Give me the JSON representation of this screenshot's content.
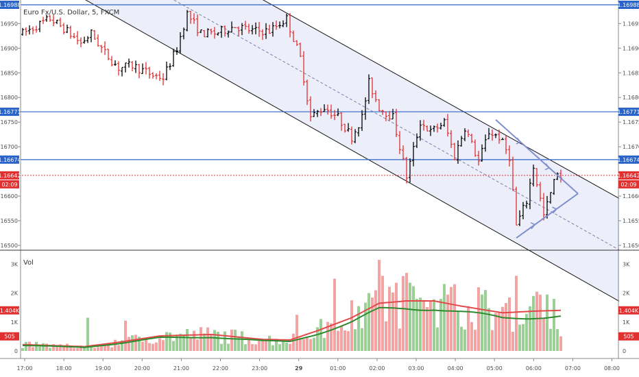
{
  "header": {
    "title": "Euro Fx/U.S. Dollar, 5, FXCM"
  },
  "volume_label": "Vol",
  "colors": {
    "up": "#000000",
    "down": "#e03030",
    "hline": "#2a64c8",
    "current": "#e03030",
    "channel_fill": "#eceef9",
    "channel_line": "#111111",
    "channel_mid": "#7b7fb0",
    "triangle": "#7f8fcf",
    "vol_up": "#9ccf95",
    "vol_down": "#f4a3a3",
    "vol_ma": "#e14848",
    "vol_ma2": "#2d8a2d"
  },
  "chart_data": [
    {
      "type": "candlestick",
      "title": "Euro Fx/U.S. Dollar, 5, FXCM",
      "ylim": [
        1.165,
        1.16988
      ],
      "y_ticks": [
        "1.16950",
        "1.16900",
        "1.16850",
        "1.16800",
        "1.16750",
        "1.16700",
        "1.16600",
        "1.16550",
        "1.16500"
      ],
      "x_ticks": [
        "17:00",
        "18:00",
        "19:00",
        "20:00",
        "21:00",
        "22:00",
        "23:00",
        "29",
        "01:00",
        "02:00",
        "03:00",
        "04:00",
        "05:00",
        "06:00",
        "07:00",
        "08:00"
      ],
      "x_ticks_right": [
        "08:00"
      ],
      "horizontal_lines": [
        {
          "value": 1.16988,
          "label": "1.16988"
        },
        {
          "value": 1.16771,
          "label": "1.16771"
        },
        {
          "value": 1.16674,
          "label": "1.16674"
        }
      ],
      "current_price": {
        "value": 1.16642,
        "label": "1.16642",
        "countdown": "02:09"
      },
      "anchors": [
        {
          "t": 0,
          "p": 1.1693
        },
        {
          "t": 8,
          "p": 1.1696
        },
        {
          "t": 12,
          "p": 1.1694
        },
        {
          "t": 17,
          "p": 1.1691
        },
        {
          "t": 20,
          "p": 1.1693
        },
        {
          "t": 24,
          "p": 1.1689
        },
        {
          "t": 28,
          "p": 1.1686
        },
        {
          "t": 32,
          "p": 1.16865
        },
        {
          "t": 38,
          "p": 1.16845
        },
        {
          "t": 41,
          "p": 1.1684
        },
        {
          "t": 45,
          "p": 1.169
        },
        {
          "t": 48,
          "p": 1.1697
        },
        {
          "t": 52,
          "p": 1.1693
        },
        {
          "t": 56,
          "p": 1.1693
        },
        {
          "t": 62,
          "p": 1.16945
        },
        {
          "t": 67,
          "p": 1.16935
        },
        {
          "t": 72,
          "p": 1.16935
        },
        {
          "t": 77,
          "p": 1.1696
        },
        {
          "t": 79,
          "p": 1.1692
        },
        {
          "t": 81,
          "p": 1.1688
        },
        {
          "t": 84,
          "p": 1.1676
        },
        {
          "t": 88,
          "p": 1.1678
        },
        {
          "t": 92,
          "p": 1.1676
        },
        {
          "t": 96,
          "p": 1.1672
        },
        {
          "t": 99,
          "p": 1.1676
        },
        {
          "t": 101,
          "p": 1.1683
        },
        {
          "t": 104,
          "p": 1.1678
        },
        {
          "t": 108,
          "p": 1.1676
        },
        {
          "t": 112,
          "p": 1.1664
        },
        {
          "t": 116,
          "p": 1.1675
        },
        {
          "t": 119,
          "p": 1.1673
        },
        {
          "t": 123,
          "p": 1.1675
        },
        {
          "t": 126,
          "p": 1.1668
        },
        {
          "t": 129,
          "p": 1.1674
        },
        {
          "t": 133,
          "p": 1.1667
        },
        {
          "t": 136,
          "p": 1.1673
        },
        {
          "t": 139,
          "p": 1.1672
        },
        {
          "t": 142,
          "p": 1.1668
        },
        {
          "t": 144,
          "p": 1.1654
        },
        {
          "t": 147,
          "p": 1.1659
        },
        {
          "t": 149,
          "p": 1.1666
        },
        {
          "t": 152,
          "p": 1.1656
        },
        {
          "t": 156,
          "p": 1.1665
        },
        {
          "t": 157,
          "p": 1.1664
        }
      ],
      "channel": {
        "upper": {
          "t1": 58,
          "p1": 1.17045,
          "t2": 163,
          "p2": 1.16638
        },
        "lower": {
          "t1": 0,
          "p1": 1.1707,
          "t2": 149,
          "p2": 1.16485
        }
      },
      "triangle": {
        "apex": {
          "t": 162,
          "p": 1.16605
        },
        "top": {
          "t": 138,
          "p": 1.16755
        },
        "bottom": {
          "t": 144,
          "p": 1.16515
        }
      }
    },
    {
      "type": "bar",
      "name": "Vol",
      "ylim": [
        0,
        3200
      ],
      "y_ticks": [
        "3K",
        "2K",
        "1K",
        "0"
      ],
      "last_volume": {
        "value": 505,
        "label": "505"
      },
      "volume_ma": {
        "value": 1404,
        "label": "1.404K"
      },
      "ma_anchors": [
        {
          "t": 0,
          "v": 220
        },
        {
          "t": 18,
          "v": 150
        },
        {
          "t": 28,
          "v": 300
        },
        {
          "t": 40,
          "v": 520
        },
        {
          "t": 55,
          "v": 570
        },
        {
          "t": 70,
          "v": 400
        },
        {
          "t": 78,
          "v": 380
        },
        {
          "t": 86,
          "v": 700
        },
        {
          "t": 96,
          "v": 1150
        },
        {
          "t": 104,
          "v": 1650
        },
        {
          "t": 112,
          "v": 1730
        },
        {
          "t": 120,
          "v": 1730
        },
        {
          "t": 128,
          "v": 1550
        },
        {
          "t": 140,
          "v": 1320
        },
        {
          "t": 150,
          "v": 1380
        },
        {
          "t": 157,
          "v": 1404
        }
      ],
      "spikes": [
        {
          "t": 19,
          "v": 1150
        },
        {
          "t": 30,
          "v": 1050
        },
        {
          "t": 80,
          "v": 1250
        },
        {
          "t": 91,
          "v": 2500
        },
        {
          "t": 96,
          "v": 1750
        },
        {
          "t": 98,
          "v": 1550
        },
        {
          "t": 101,
          "v": 2000
        },
        {
          "t": 103,
          "v": 2100
        },
        {
          "t": 104,
          "v": 3150
        },
        {
          "t": 105,
          "v": 2600
        },
        {
          "t": 112,
          "v": 2700
        },
        {
          "t": 124,
          "v": 1950
        },
        {
          "t": 130,
          "v": 1550
        },
        {
          "t": 134,
          "v": 1950
        },
        {
          "t": 144,
          "v": 2600
        },
        {
          "t": 150,
          "v": 2050
        },
        {
          "t": 153,
          "v": 1950
        },
        {
          "t": 155,
          "v": 1800
        }
      ]
    }
  ]
}
